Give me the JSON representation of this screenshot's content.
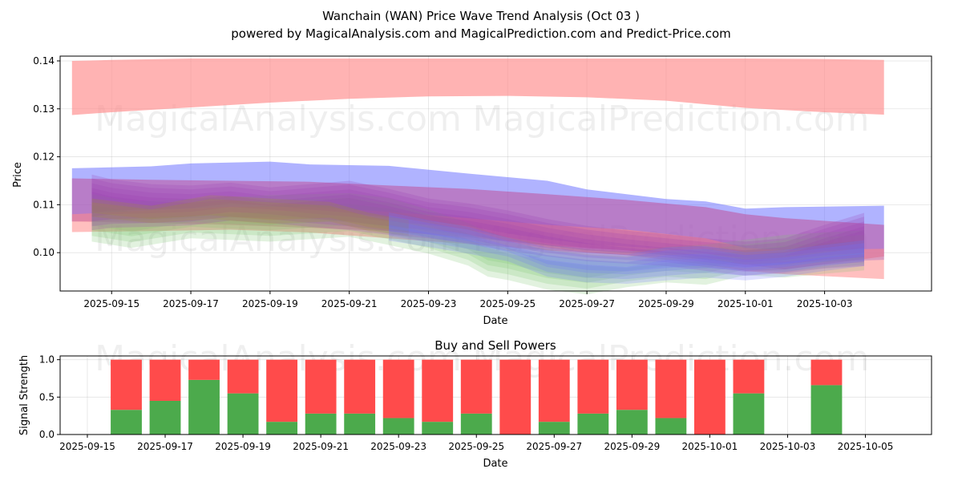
{
  "title": "Wanchain (WAN) Price Wave Trend Analysis (Oct 03 )",
  "subtitle": "powered by MagicalAnalysis.com and MagicalPrediction.com and Predict-Price.com",
  "watermarks": [
    "MagicalAnalysis.com",
    "MagicalPrediction.com"
  ],
  "colors": {
    "upper_red": "#ff8a8a",
    "blue": "#6f74ff",
    "purple": "#9a3fb3",
    "magenta": "#c0509a",
    "green": "#7ac46e",
    "olive": "#a08c3c",
    "bar_buy": "#4caa4c",
    "bar_sell": "#ff4b4b"
  },
  "chart_data": [
    {
      "type": "area",
      "title": "",
      "xlabel": "Date",
      "ylabel": "Price",
      "x_ticks": [
        "2025-09-15",
        "2025-09-17",
        "2025-09-19",
        "2025-09-21",
        "2025-09-23",
        "2025-09-25",
        "2025-09-27",
        "2025-09-29",
        "2025-10-01",
        "2025-10-03"
      ],
      "y_ticks": [
        "0.10",
        "0.11",
        "0.12",
        "0.13",
        "0.14"
      ],
      "ylim": [
        0.092,
        0.141
      ],
      "xlim_days": [
        -0.3,
        21.7
      ],
      "x_origin": "2025-09-14",
      "series": [
        {
          "name": "upper red band",
          "x": [
            0,
            1,
            3,
            5,
            7,
            9,
            11,
            13,
            15,
            17,
            19,
            20.5
          ],
          "lower": [
            0.1287,
            0.1293,
            0.1303,
            0.1313,
            0.1321,
            0.1326,
            0.1327,
            0.1324,
            0.1317,
            0.1302,
            0.1293,
            0.1288
          ],
          "upper": [
            0.14,
            0.1402,
            0.1405,
            0.1405,
            0.1405,
            0.1405,
            0.1405,
            0.1405,
            0.1405,
            0.1405,
            0.1404,
            0.1402
          ]
        },
        {
          "name": "blue band",
          "x": [
            0,
            2,
            3,
            5,
            6,
            8,
            10,
            12,
            13,
            15,
            16,
            17,
            18,
            20.5
          ],
          "lower": [
            0.1065,
            0.1068,
            0.1072,
            0.1074,
            0.107,
            0.1055,
            0.1035,
            0.1015,
            0.1005,
            0.0995,
            0.0985,
            0.0975,
            0.0978,
            0.0985
          ],
          "upper": [
            0.1176,
            0.118,
            0.1186,
            0.119,
            0.1184,
            0.1181,
            0.1165,
            0.115,
            0.1132,
            0.1112,
            0.1107,
            0.1092,
            0.1095,
            0.1098
          ]
        },
        {
          "name": "magenta band",
          "x": [
            0,
            2,
            4,
            6,
            8,
            10,
            12,
            14,
            16,
            17,
            18,
            20.5
          ],
          "lower": [
            0.1065,
            0.1062,
            0.1058,
            0.1052,
            0.1045,
            0.1032,
            0.1015,
            0.1005,
            0.0985,
            0.0975,
            0.0965,
            0.0992
          ],
          "upper": [
            0.1155,
            0.1152,
            0.115,
            0.1148,
            0.114,
            0.1133,
            0.1122,
            0.111,
            0.1095,
            0.108,
            0.1072,
            0.1058
          ]
        },
        {
          "name": "lower red band",
          "x": [
            0,
            2,
            4,
            6,
            8,
            10,
            12,
            14,
            16,
            17,
            18,
            20.5
          ],
          "lower": [
            0.1043,
            0.1045,
            0.1048,
            0.1042,
            0.103,
            0.1018,
            0.1005,
            0.0995,
            0.0975,
            0.0962,
            0.0955,
            0.0945
          ],
          "upper": [
            0.108,
            0.1088,
            0.1096,
            0.1095,
            0.1085,
            0.1072,
            0.1058,
            0.1048,
            0.103,
            0.101,
            0.1005,
            0.1008
          ]
        },
        {
          "name": "green wave",
          "x": [
            0.5,
            1.5,
            3,
            5,
            7,
            8,
            9,
            10,
            10.5,
            11,
            12,
            13,
            14,
            15,
            16,
            16.5,
            17,
            18,
            19,
            20
          ],
          "lower": [
            0.1035,
            0.1022,
            0.1042,
            0.1035,
            0.1045,
            0.1028,
            0.101,
            0.0985,
            0.0962,
            0.0955,
            0.0935,
            0.0925,
            0.094,
            0.095,
            0.0945,
            0.0955,
            0.0965,
            0.096,
            0.0968,
            0.0975
          ],
          "upper": [
            0.11,
            0.1085,
            0.109,
            0.1098,
            0.1102,
            0.1092,
            0.1068,
            0.104,
            0.1022,
            0.101,
            0.0995,
            0.0985,
            0.098,
            0.099,
            0.0995,
            0.1,
            0.1005,
            0.1015,
            0.102,
            0.1025
          ]
        },
        {
          "name": "purple wave",
          "x": [
            0.5,
            1,
            2,
            3,
            4,
            5,
            6,
            7,
            8,
            9,
            10,
            11,
            12,
            13,
            14,
            15,
            16,
            17,
            18,
            19,
            20
          ],
          "lower": [
            0.1065,
            0.107,
            0.1072,
            0.1075,
            0.1085,
            0.108,
            0.1072,
            0.1065,
            0.1055,
            0.1048,
            0.1038,
            0.1022,
            0.101,
            0.1,
            0.0995,
            0.099,
            0.098,
            0.097,
            0.0975,
            0.0985,
            0.099
          ],
          "upper": [
            0.1145,
            0.1135,
            0.1125,
            0.1122,
            0.1128,
            0.1118,
            0.1125,
            0.1132,
            0.1115,
            0.1095,
            0.1085,
            0.107,
            0.1052,
            0.1038,
            0.1028,
            0.102,
            0.1012,
            0.1005,
            0.1012,
            0.104,
            0.1065
          ]
        },
        {
          "name": "olive wave",
          "x": [
            0.5,
            2,
            3.5,
            5,
            6.5,
            7.5,
            8.5
          ],
          "lower": [
            0.1075,
            0.1062,
            0.107,
            0.106,
            0.1065,
            0.1045,
            0.1035
          ],
          "upper": [
            0.1105,
            0.109,
            0.1112,
            0.1105,
            0.1098,
            0.1075,
            0.106
          ]
        },
        {
          "name": "blue wave",
          "x": [
            8,
            9,
            10,
            11,
            12,
            13,
            14,
            15,
            16,
            17,
            18,
            19,
            20
          ],
          "lower": [
            0.1035,
            0.1022,
            0.1008,
            0.0992,
            0.096,
            0.0948,
            0.0945,
            0.0952,
            0.0958,
            0.0952,
            0.096,
            0.0972,
            0.0982
          ],
          "upper": [
            0.1068,
            0.1052,
            0.1038,
            0.1015,
            0.0995,
            0.0985,
            0.098,
            0.0995,
            0.0998,
            0.0985,
            0.099,
            0.1,
            0.101
          ]
        }
      ]
    },
    {
      "type": "bar",
      "title": "Buy and Sell Powers",
      "xlabel": "Date",
      "ylabel": "Signal Strength",
      "x_ticks": [
        "2025-09-15",
        "2025-09-17",
        "2025-09-19",
        "2025-09-21",
        "2025-09-23",
        "2025-09-25",
        "2025-09-27",
        "2025-09-29",
        "2025-10-01",
        "2025-10-03",
        "2025-10-05"
      ],
      "y_ticks": [
        "0.0",
        "0.5",
        "1.0"
      ],
      "ylim": [
        0,
        1.05
      ],
      "xlim_days": [
        -0.7,
        21.7
      ],
      "x_origin": "2025-09-15",
      "categories": [
        "2025-09-16",
        "2025-09-17",
        "2025-09-18",
        "2025-09-19",
        "2025-09-20",
        "2025-09-21",
        "2025-09-22",
        "2025-09-23",
        "2025-09-24",
        "2025-09-25",
        "2025-09-26",
        "2025-09-27",
        "2025-09-28",
        "2025-09-29",
        "2025-09-30",
        "2025-10-01",
        "2025-10-02",
        "2025-10-04"
      ],
      "day_offsets": [
        1,
        2,
        3,
        4,
        5,
        6,
        7,
        8,
        9,
        10,
        11,
        12,
        13,
        14,
        15,
        16,
        17,
        19
      ],
      "series": [
        {
          "name": "Buy",
          "values": [
            0.33,
            0.45,
            0.73,
            0.55,
            0.17,
            0.28,
            0.28,
            0.22,
            0.17,
            0.28,
            0.0,
            0.17,
            0.28,
            0.33,
            0.22,
            0.0,
            0.55,
            0.66
          ]
        },
        {
          "name": "Sell",
          "values": [
            0.67,
            0.55,
            0.27,
            0.45,
            0.83,
            0.72,
            0.72,
            0.78,
            0.83,
            0.72,
            1.0,
            0.83,
            0.72,
            0.67,
            0.78,
            1.0,
            0.45,
            0.34
          ]
        }
      ]
    }
  ]
}
